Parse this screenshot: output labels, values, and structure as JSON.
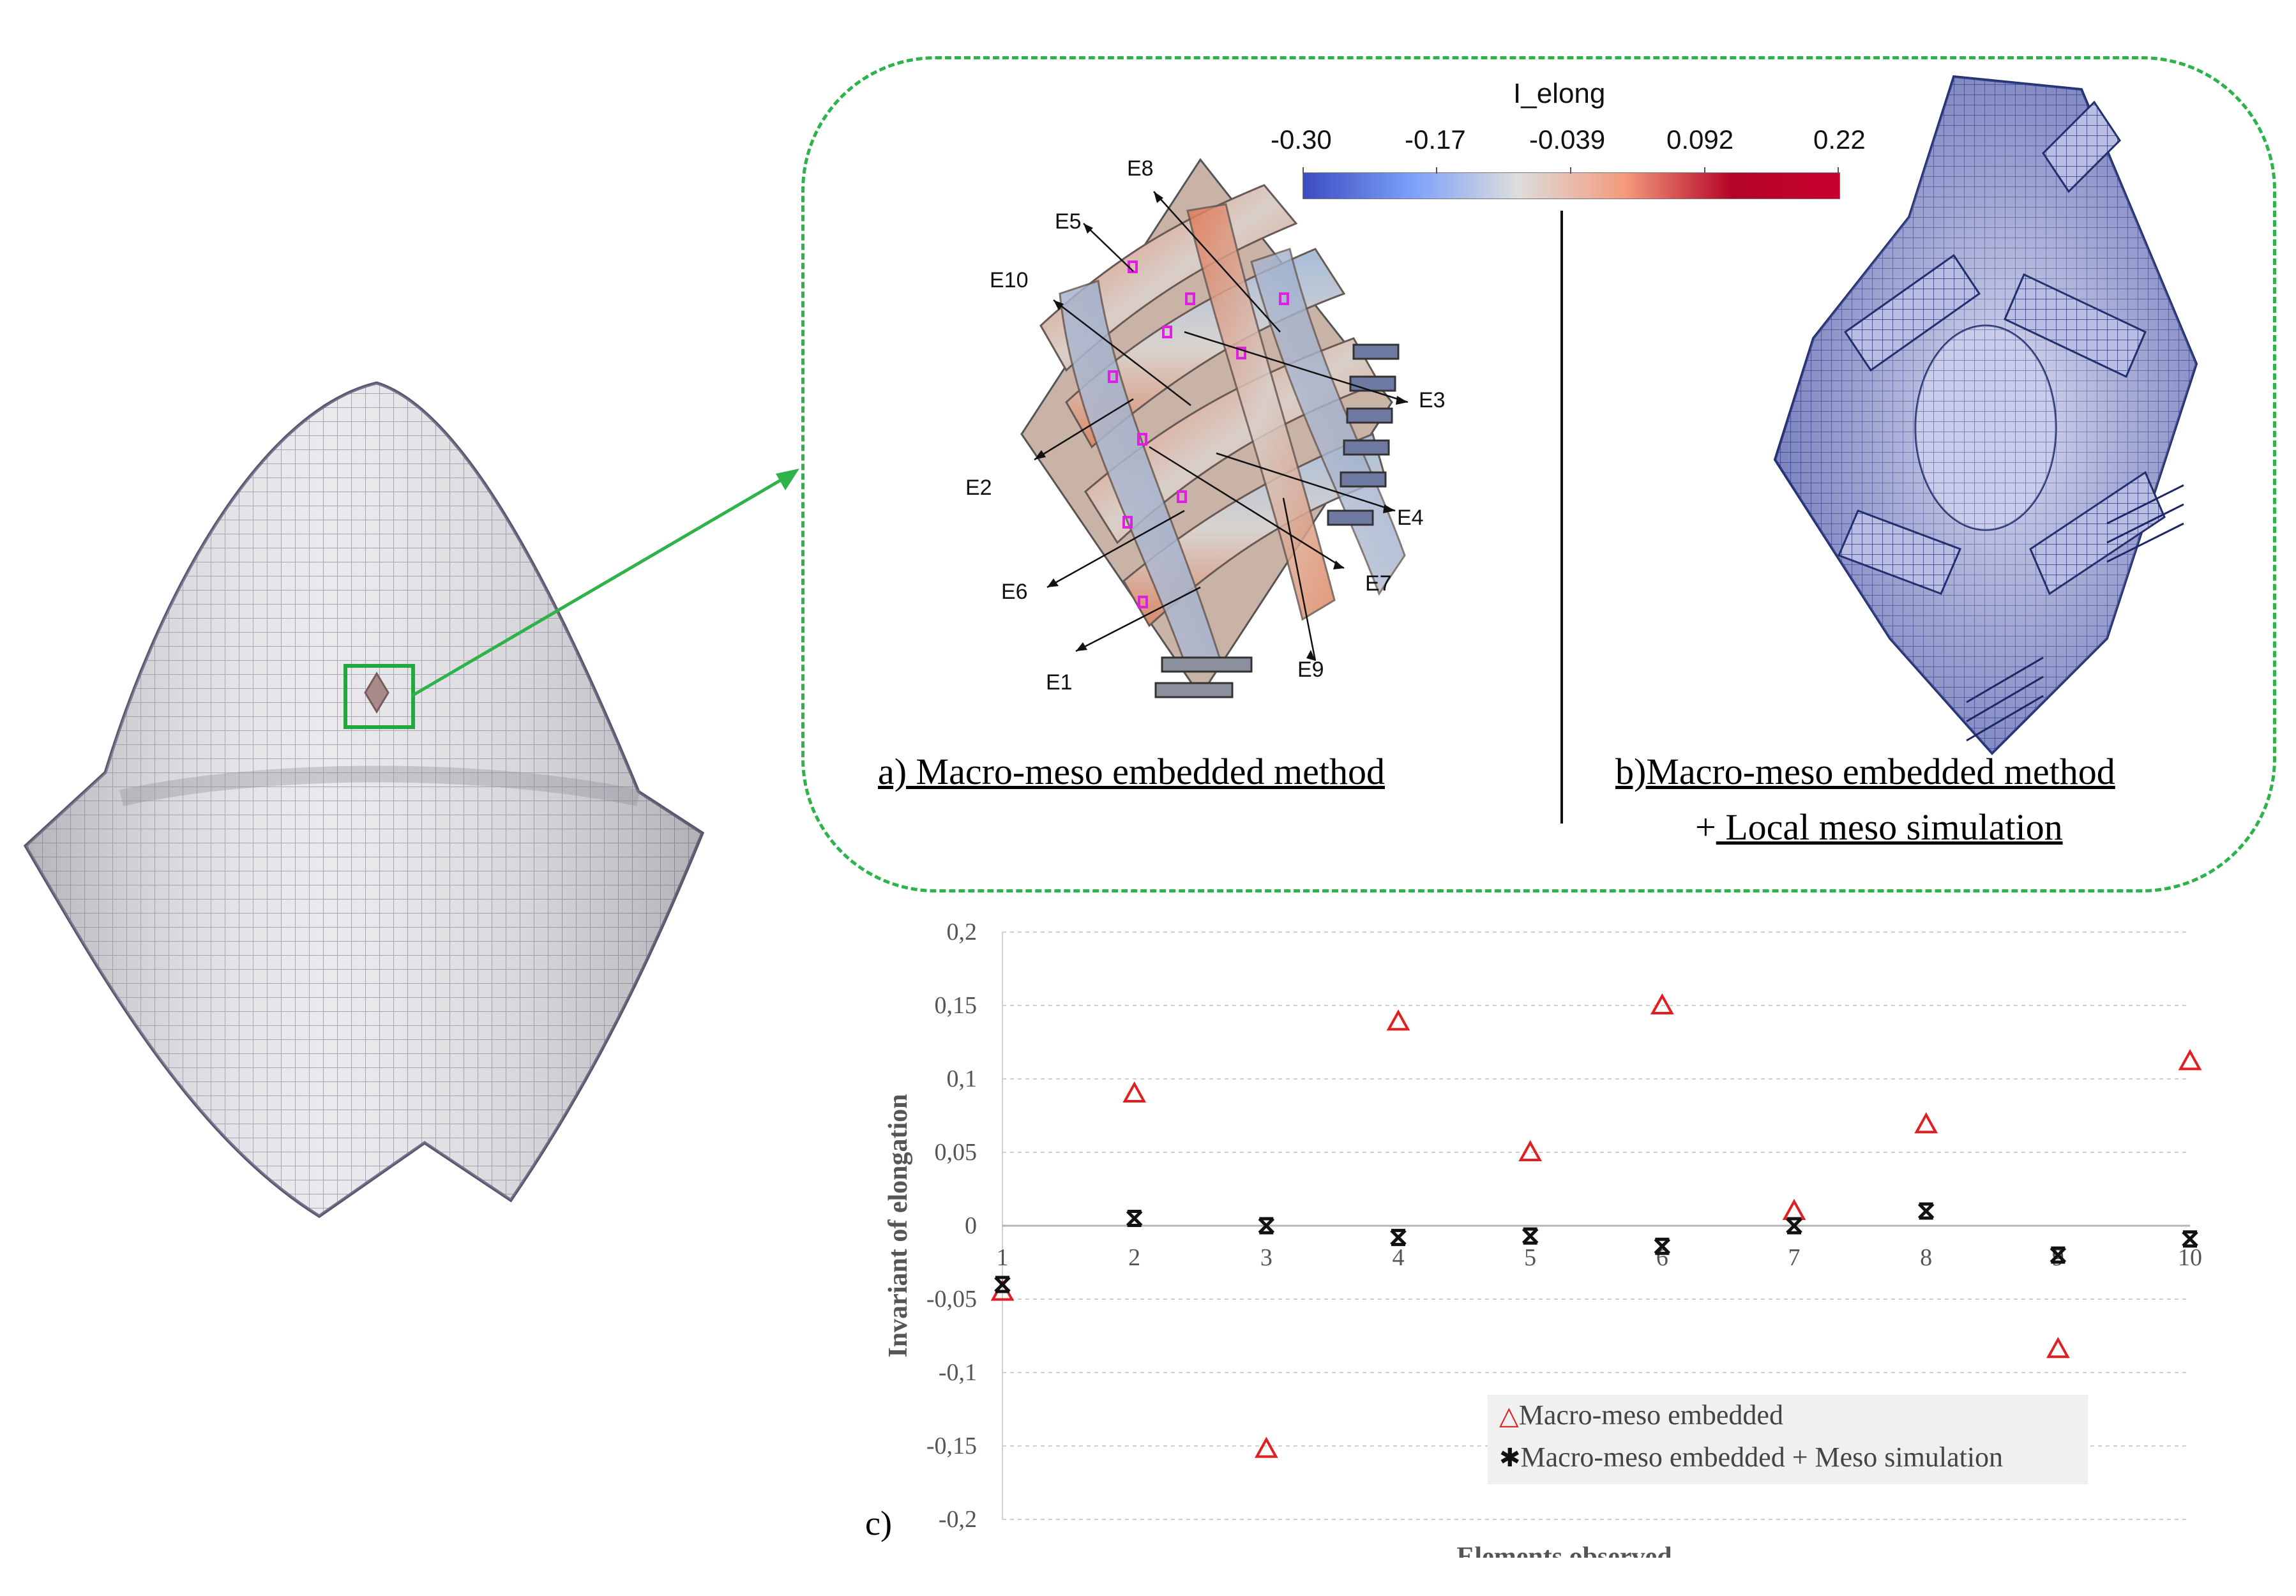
{
  "colorbar": {
    "title": "I_elong",
    "ticks": [
      "-0.30",
      "-0.17",
      "-0.039",
      "0.092",
      "0.22"
    ],
    "low_color": "#3b4cc0",
    "mid_color": "#dddddd",
    "high_color": "#b40426"
  },
  "element_labels": [
    "E8",
    "E5",
    "E10",
    "E3",
    "E2",
    "E4",
    "E7",
    "E6",
    "E1",
    "E9"
  ],
  "captions": {
    "a": "a)  Macro-meso embedded method",
    "b_line1": "b)Macro-meso embedded method",
    "b_plus": "+",
    "b_line2": " Local meso simulation",
    "c": "c)"
  },
  "accent_colors": {
    "zoom_frame": "#2db34a",
    "selection_box": "#22a83c"
  },
  "chart_data": {
    "type": "scatter",
    "xlabel": "Elements observed",
    "ylabel": "Invariant  of elongation",
    "ylim": [
      -0.2,
      0.2
    ],
    "xlim": [
      1,
      10
    ],
    "y_ticks": [
      "0,2",
      "0,15",
      "0,1",
      "0,05",
      "0",
      "-0,05",
      "-0,1",
      "-0,15",
      "-0,2"
    ],
    "x_ticks": [
      "1",
      "2",
      "3",
      "4",
      "5",
      "6",
      "7",
      "8",
      "9",
      "10"
    ],
    "grid": true,
    "legend_position": "bottom-right",
    "series": [
      {
        "name": "Macro-meso embedded",
        "marker": "triangle",
        "color": "#e02020",
        "x": [
          1,
          2,
          3,
          4,
          5,
          6,
          7,
          8,
          9,
          10
        ],
        "y": [
          -0.045,
          0.09,
          -0.152,
          0.139,
          0.05,
          0.15,
          0.01,
          0.069,
          -0.084,
          0.112
        ]
      },
      {
        "name": "Macro-meso embedded + Meso simulation",
        "marker": "x",
        "color": "#111111",
        "x": [
          1,
          2,
          3,
          4,
          5,
          6,
          7,
          8,
          9,
          10
        ],
        "y": [
          -0.04,
          0.005,
          0.0,
          -0.008,
          -0.007,
          -0.014,
          0.0,
          0.01,
          -0.02,
          -0.009
        ]
      }
    ]
  }
}
